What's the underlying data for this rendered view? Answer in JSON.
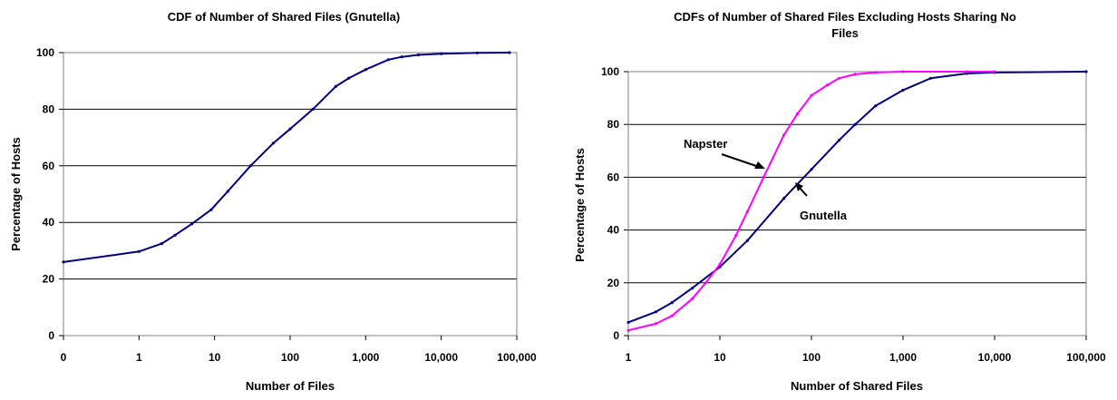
{
  "chart_data": [
    {
      "type": "line",
      "title": "CDF of Number of Shared Files (Gnutella)",
      "xlabel": "Number of Files",
      "ylabel": "Percentage of Hosts",
      "x_scale": "log (first tick 0)",
      "x_ticks": [
        "0",
        "1",
        "10",
        "100",
        "1,000",
        "10,000",
        "100,000"
      ],
      "y_ticks": [
        "0",
        "20",
        "40",
        "60",
        "80",
        "100"
      ],
      "ylim": [
        0,
        100
      ],
      "grid": "horizontal",
      "colors": {
        "series": "#000080"
      },
      "series": [
        {
          "name": "",
          "points": [
            {
              "x": 0,
              "y": 26
            },
            {
              "x": 1,
              "y": 29.7
            },
            {
              "x": 2,
              "y": 32.5
            },
            {
              "x": 3,
              "y": 35.5
            },
            {
              "x": 5,
              "y": 39.5
            },
            {
              "x": 9,
              "y": 44.5
            },
            {
              "x": 15,
              "y": 51
            },
            {
              "x": 30,
              "y": 60
            },
            {
              "x": 60,
              "y": 68
            },
            {
              "x": 100,
              "y": 73
            },
            {
              "x": 200,
              "y": 80
            },
            {
              "x": 400,
              "y": 88
            },
            {
              "x": 600,
              "y": 91
            },
            {
              "x": 1000,
              "y": 94
            },
            {
              "x": 2000,
              "y": 97.5
            },
            {
              "x": 3000,
              "y": 98.5
            },
            {
              "x": 5000,
              "y": 99.2
            },
            {
              "x": 10000,
              "y": 99.6
            },
            {
              "x": 30000,
              "y": 99.9
            },
            {
              "x": 80000,
              "y": 100
            }
          ]
        }
      ]
    },
    {
      "type": "line",
      "title": "CDFs of Number of Shared Files Excluding Hosts Sharing No Files",
      "title_lines": [
        "CDFs of Number of Shared Files Excluding Hosts Sharing No",
        "Files"
      ],
      "xlabel": "Number of Shared Files",
      "ylabel": "Percentage of Hosts",
      "x_scale": "log",
      "x_ticks": [
        "1",
        "10",
        "100",
        "1,000",
        "10,000",
        "100,000"
      ],
      "y_ticks": [
        "0",
        "20",
        "40",
        "60",
        "80",
        "100"
      ],
      "ylim": [
        0,
        100
      ],
      "grid": "horizontal",
      "annotations": [
        "Napster",
        "Gnutella"
      ],
      "series": [
        {
          "name": "Gnutella",
          "color": "#000080",
          "points": [
            {
              "x": 1,
              "y": 5
            },
            {
              "x": 2,
              "y": 9
            },
            {
              "x": 3,
              "y": 12.5
            },
            {
              "x": 5,
              "y": 18
            },
            {
              "x": 10,
              "y": 26
            },
            {
              "x": 20,
              "y": 36
            },
            {
              "x": 50,
              "y": 52
            },
            {
              "x": 100,
              "y": 63
            },
            {
              "x": 200,
              "y": 74
            },
            {
              "x": 300,
              "y": 80
            },
            {
              "x": 500,
              "y": 87
            },
            {
              "x": 1000,
              "y": 93
            },
            {
              "x": 2000,
              "y": 97.5
            },
            {
              "x": 5000,
              "y": 99.3
            },
            {
              "x": 10000,
              "y": 99.7
            },
            {
              "x": 100000,
              "y": 100
            }
          ]
        },
        {
          "name": "Napster",
          "color": "#ff00ff",
          "points": [
            {
              "x": 1,
              "y": 2
            },
            {
              "x": 2,
              "y": 4.5
            },
            {
              "x": 3,
              "y": 7.5
            },
            {
              "x": 5,
              "y": 14
            },
            {
              "x": 7,
              "y": 20
            },
            {
              "x": 10,
              "y": 27
            },
            {
              "x": 15,
              "y": 38
            },
            {
              "x": 20,
              "y": 47
            },
            {
              "x": 30,
              "y": 60
            },
            {
              "x": 50,
              "y": 76
            },
            {
              "x": 70,
              "y": 84
            },
            {
              "x": 100,
              "y": 91
            },
            {
              "x": 150,
              "y": 95
            },
            {
              "x": 200,
              "y": 97.5
            },
            {
              "x": 300,
              "y": 99
            },
            {
              "x": 500,
              "y": 99.7
            },
            {
              "x": 1000,
              "y": 100
            },
            {
              "x": 5000,
              "y": 100
            },
            {
              "x": 10000,
              "y": 100
            }
          ]
        }
      ]
    }
  ]
}
